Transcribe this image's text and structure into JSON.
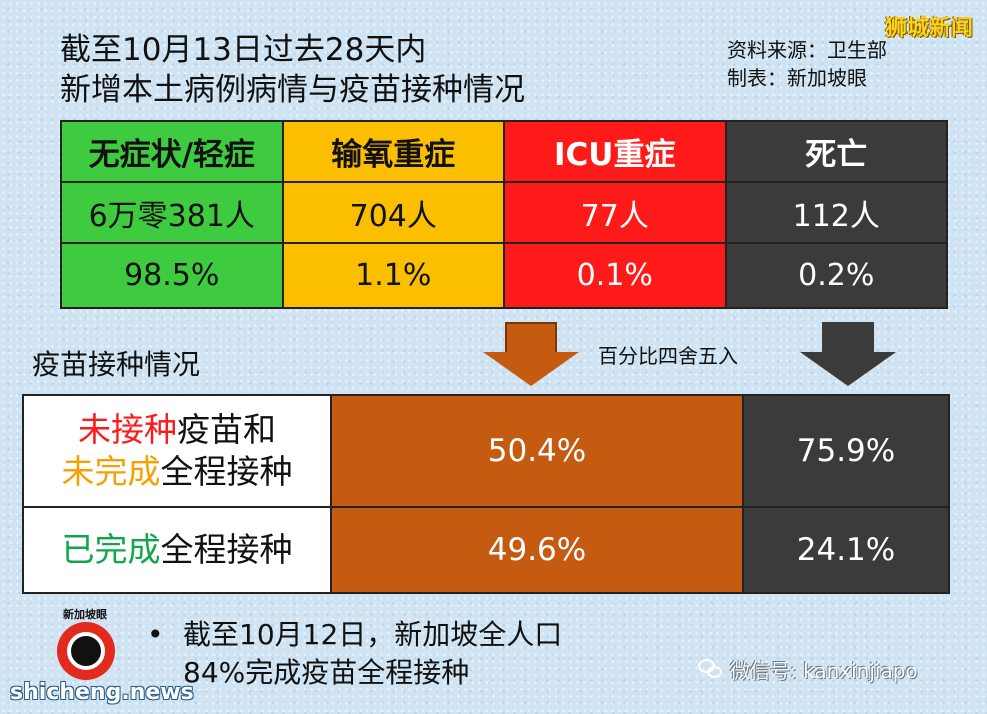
{
  "header": {
    "title_line1": "截至10月13日过去28天内",
    "title_line2": "新增本土病例病情与疫苗接种情况",
    "source_line1": "资料来源：卫生部",
    "source_line2": "制表：新加坡眼",
    "watermark": "狮城新闻"
  },
  "stats_table": {
    "columns": [
      {
        "label": "无症状/轻症",
        "count": "6万零381人",
        "pct": "98.5%",
        "color": "#3fcb3f"
      },
      {
        "label": "输氧重症",
        "count": "704人",
        "pct": "1.1%",
        "color": "#fbbf00"
      },
      {
        "label": "ICU重症",
        "count": "77人",
        "pct": "0.1%",
        "color": "#ff1a1a"
      },
      {
        "label": "死亡",
        "count": "112人",
        "pct": "0.2%",
        "color": "#3b3b3b"
      }
    ]
  },
  "rounding_note": "百分比四舍五入",
  "vaccination": {
    "title": "疫苗接种情况",
    "row1": {
      "label_a_highlight": "未接种",
      "label_a_rest": "疫苗和",
      "label_b_highlight": "未完成",
      "label_b_rest": "全程接种",
      "icu_pct": "50.4%",
      "death_pct": "75.9%"
    },
    "row2": {
      "label_highlight": "已完成",
      "label_rest": "全程接种",
      "icu_pct": "49.6%",
      "death_pct": "24.1%"
    }
  },
  "bullet": {
    "symbol": "•",
    "line1": "截至10月12日，新加坡全人口",
    "line2": "84%完成疫苗全程接种"
  },
  "footer": {
    "logo_text": "新加坡眼",
    "site": "shicheng.news",
    "wechat": "微信号: kanxinjiapo"
  }
}
